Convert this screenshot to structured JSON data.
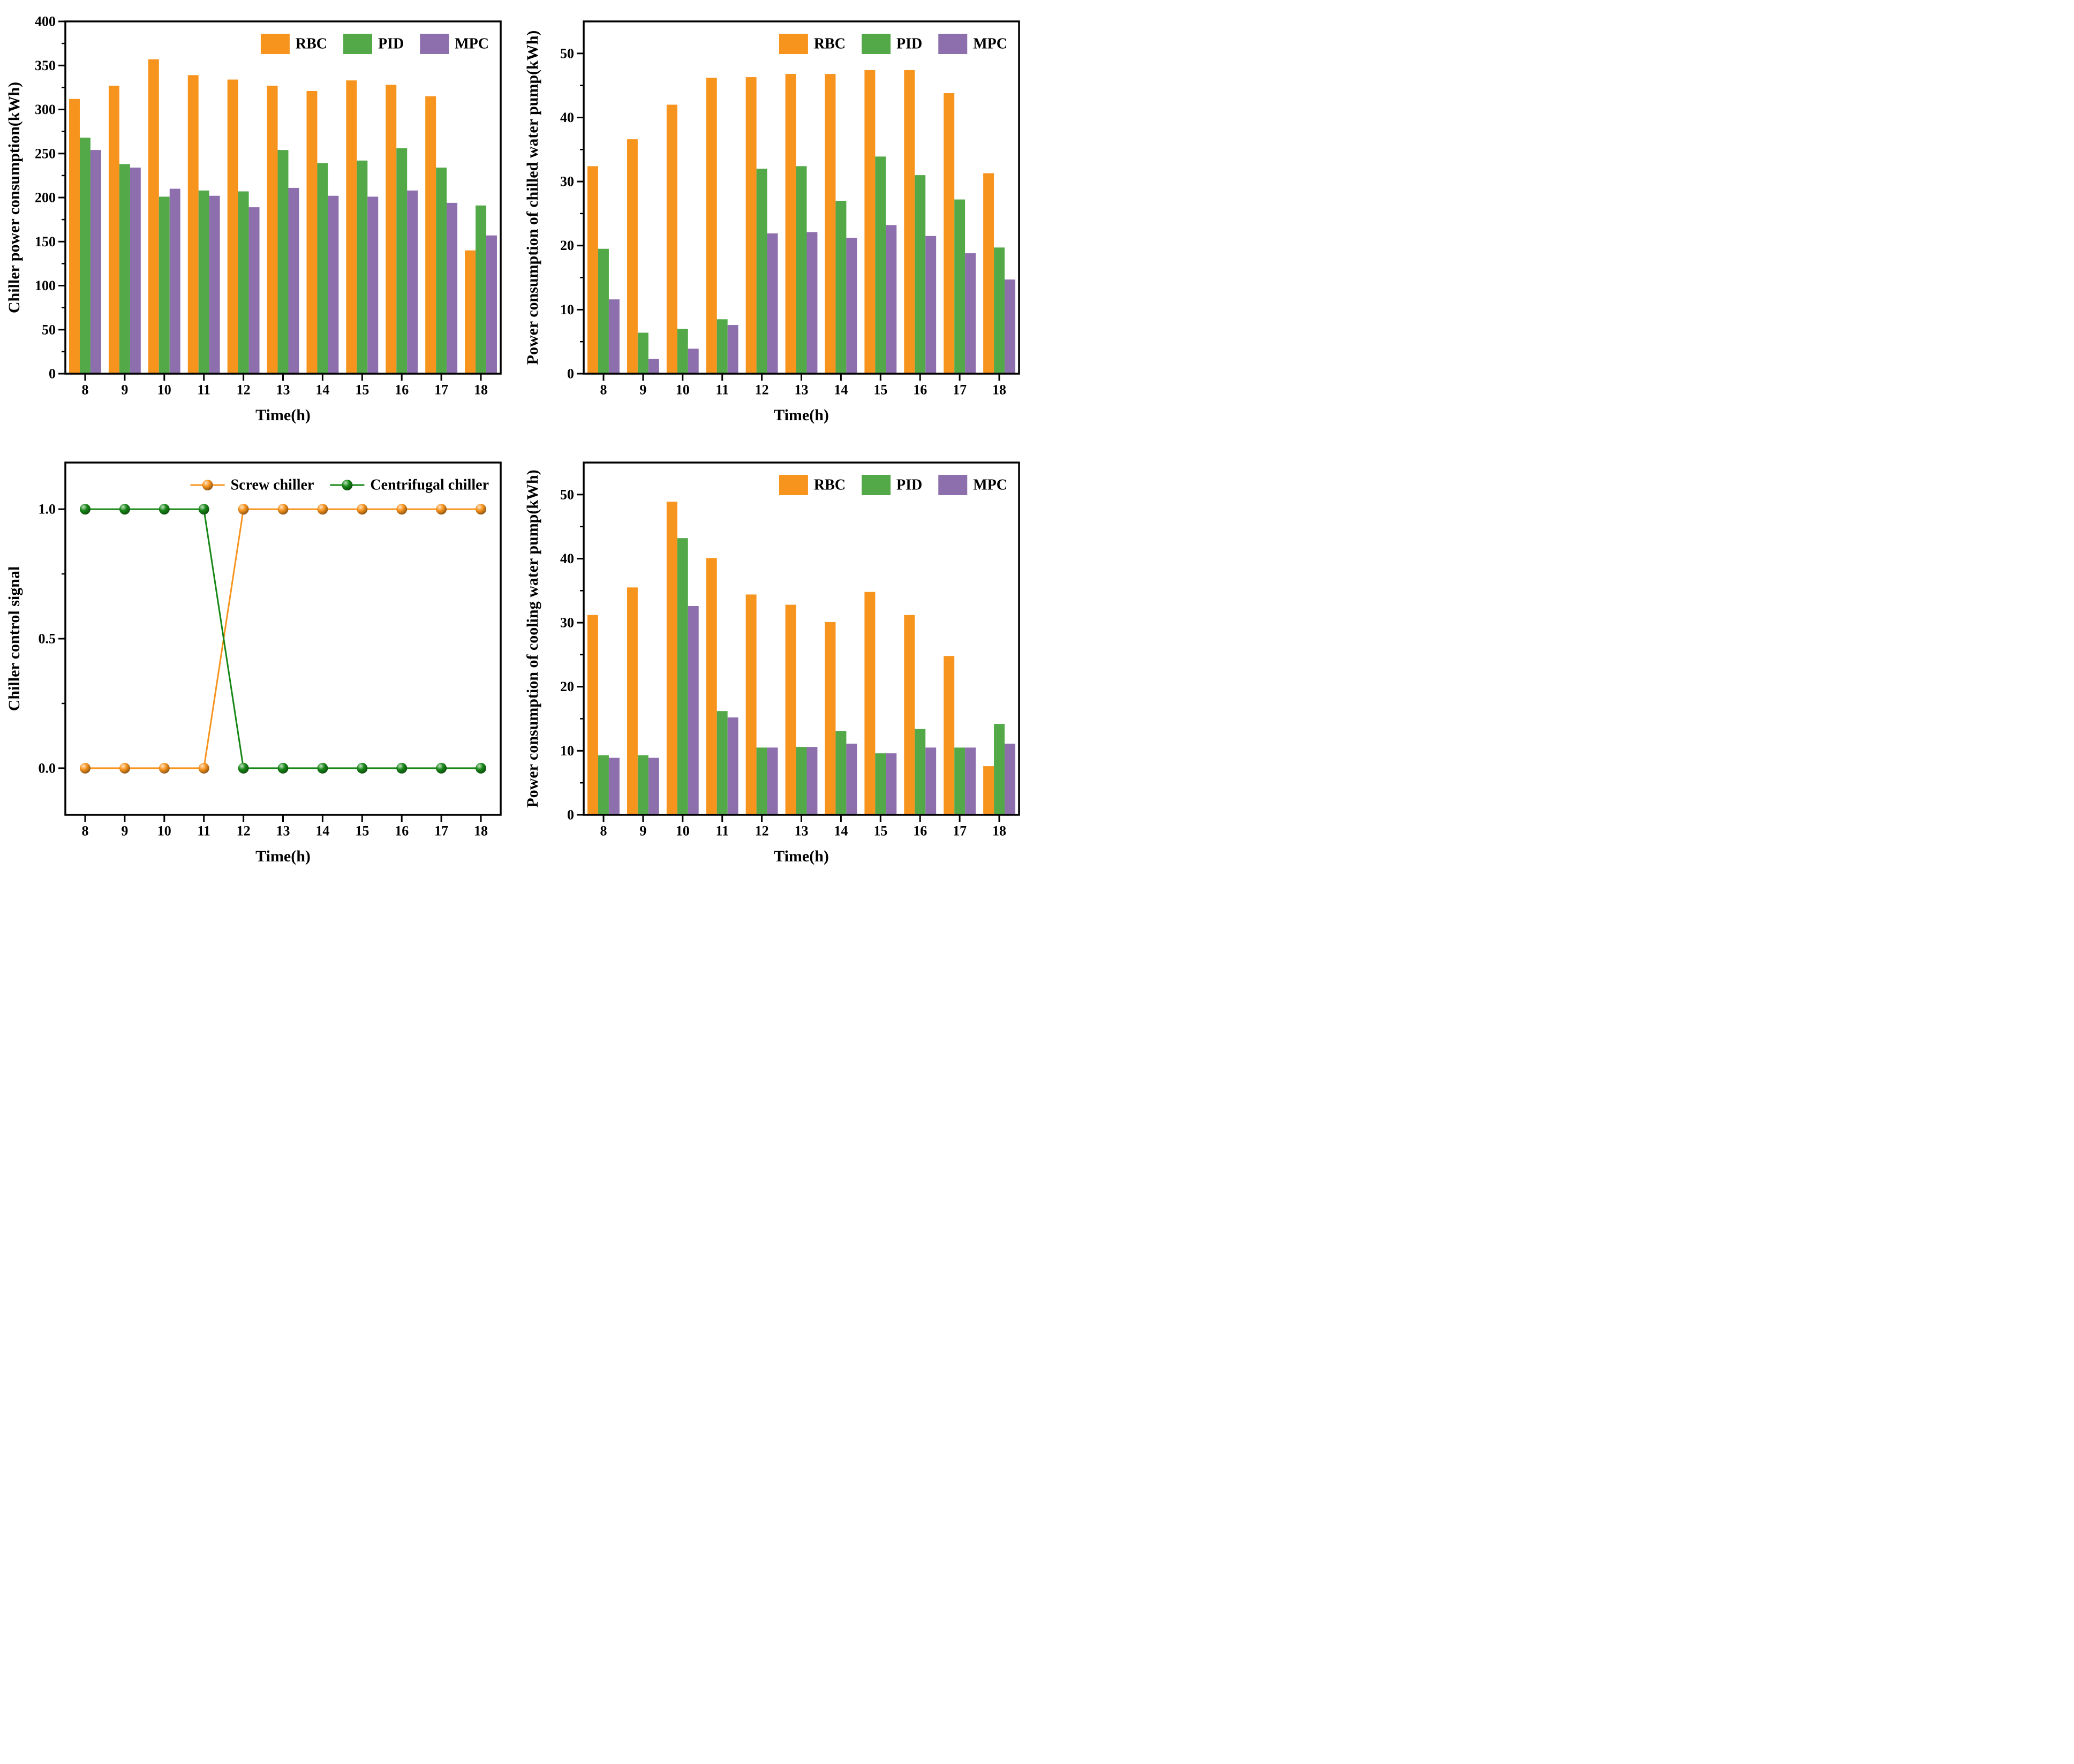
{
  "page": {
    "background": "#ffffff",
    "description": "Four-panel figure comparing RBC, PID and MPC control strategies"
  },
  "colors": {
    "rbc": "#F7941E",
    "pid": "#53A948",
    "mpc": "#8E6FAE",
    "screw": "#F7941E",
    "centrifugal": "#178717",
    "axis": "#000000",
    "text": "#000000"
  },
  "chart_data": [
    {
      "id": "chiller-power",
      "type": "bar",
      "title": "",
      "xlabel": "Time(h)",
      "ylabel": "Chiller power consumption(kWh)",
      "categories": [
        "8",
        "9",
        "10",
        "11",
        "12",
        "13",
        "14",
        "15",
        "16",
        "17",
        "18"
      ],
      "ylim": [
        0,
        400
      ],
      "yticks": [
        0,
        50,
        100,
        150,
        200,
        250,
        300,
        350,
        400
      ],
      "ytick_labels": [
        "0",
        "50",
        "100",
        "150",
        "200",
        "250",
        "300",
        "350",
        "400"
      ],
      "minor_step": 25,
      "grid": false,
      "legend_position": "top-right-inside",
      "legend": [
        "RBC",
        "PID",
        "MPC"
      ],
      "series": [
        {
          "name": "RBC",
          "color_key": "rbc",
          "values": [
            312,
            327,
            357,
            339,
            334,
            327,
            321,
            333,
            328,
            315,
            140
          ]
        },
        {
          "name": "PID",
          "color_key": "pid",
          "values": [
            268,
            238,
            201,
            208,
            207,
            254,
            239,
            242,
            256,
            234,
            191
          ]
        },
        {
          "name": "MPC",
          "color_key": "mpc",
          "values": [
            254,
            234,
            210,
            202,
            189,
            211,
            202,
            201,
            208,
            194,
            157
          ]
        }
      ]
    },
    {
      "id": "chilled-water-pump",
      "type": "bar",
      "title": "",
      "xlabel": "Time(h)",
      "ylabel": "Power consumption of chilled water pump(kWh)",
      "categories": [
        "8",
        "9",
        "10",
        "11",
        "12",
        "13",
        "14",
        "15",
        "16",
        "17",
        "18"
      ],
      "ylim": [
        0,
        55
      ],
      "yticks": [
        0,
        10,
        20,
        30,
        40,
        50
      ],
      "ytick_labels": [
        "0",
        "10",
        "20",
        "30",
        "40",
        "50"
      ],
      "minor_step": 5,
      "grid": false,
      "legend_position": "top-right-inside",
      "legend": [
        "RBC",
        "PID",
        "MPC"
      ],
      "series": [
        {
          "name": "RBC",
          "color_key": "rbc",
          "values": [
            32.4,
            36.6,
            42.0,
            46.2,
            46.3,
            46.8,
            46.8,
            47.4,
            47.4,
            43.8,
            31.3
          ]
        },
        {
          "name": "PID",
          "color_key": "pid",
          "values": [
            19.5,
            6.4,
            7.0,
            8.5,
            32.0,
            32.4,
            27.0,
            33.9,
            31.0,
            27.2,
            19.7
          ]
        },
        {
          "name": "MPC",
          "color_key": "mpc",
          "values": [
            11.6,
            2.3,
            3.9,
            7.6,
            21.9,
            22.1,
            21.2,
            23.2,
            21.5,
            18.8,
            14.7
          ]
        }
      ]
    },
    {
      "id": "chiller-control-signal",
      "type": "line",
      "title": "",
      "xlabel": "Time(h)",
      "ylabel": "Chiller control signal",
      "categories": [
        "8",
        "9",
        "10",
        "11",
        "12",
        "13",
        "14",
        "15",
        "16",
        "17",
        "18"
      ],
      "ylim": [
        -0.18,
        1.18
      ],
      "yticks": [
        0,
        0.5,
        1
      ],
      "ytick_labels": [
        "0.0",
        "0.5",
        "1.0"
      ],
      "minor_ticks": [
        0.25,
        0.75
      ],
      "grid": false,
      "legend_position": "top-right-inside",
      "legend": [
        "Screw chiller",
        "Centrifugal chiller"
      ],
      "series": [
        {
          "name": "Screw chiller",
          "color_key": "screw",
          "values": [
            0,
            0,
            0,
            0,
            1,
            1,
            1,
            1,
            1,
            1,
            1
          ]
        },
        {
          "name": "Centrifugal chiller",
          "color_key": "centrifugal",
          "values": [
            1,
            1,
            1,
            1,
            0,
            0,
            0,
            0,
            0,
            0,
            0
          ]
        }
      ]
    },
    {
      "id": "cooling-water-pump",
      "type": "bar",
      "title": "",
      "xlabel": "Time(h)",
      "ylabel": "Power consumption of cooling water pump(kWh)",
      "categories": [
        "8",
        "9",
        "10",
        "11",
        "12",
        "13",
        "14",
        "15",
        "16",
        "17",
        "18"
      ],
      "ylim": [
        0,
        55
      ],
      "yticks": [
        0,
        10,
        20,
        30,
        40,
        50
      ],
      "ytick_labels": [
        "0",
        "10",
        "20",
        "30",
        "40",
        "50"
      ],
      "minor_step": 5,
      "grid": false,
      "legend_position": "top-right-inside",
      "legend": [
        "RBC",
        "PID",
        "MPC"
      ],
      "series": [
        {
          "name": "RBC",
          "color_key": "rbc",
          "values": [
            31.2,
            35.5,
            48.9,
            40.1,
            34.4,
            32.8,
            30.1,
            34.8,
            31.2,
            24.8,
            7.6
          ]
        },
        {
          "name": "PID",
          "color_key": "pid",
          "values": [
            9.3,
            9.3,
            43.2,
            16.2,
            10.5,
            10.6,
            13.1,
            9.6,
            13.4,
            10.5,
            14.2
          ]
        },
        {
          "name": "MPC",
          "color_key": "mpc",
          "values": [
            8.9,
            8.9,
            32.6,
            15.2,
            10.5,
            10.6,
            11.1,
            9.6,
            10.5,
            10.5,
            11.1
          ]
        }
      ]
    }
  ]
}
